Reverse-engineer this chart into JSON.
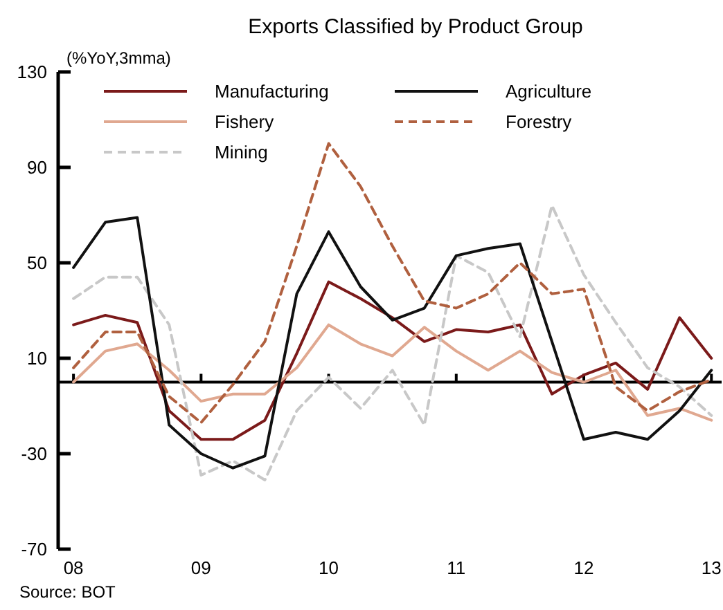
{
  "chart_data": {
    "type": "line",
    "title": "Exports Classified by Product Group",
    "ylabel": "(%YoY,3mma)",
    "annotations": [
      "Source: BOT"
    ],
    "x": [
      2008,
      2008.25,
      2008.5,
      2008.75,
      2009,
      2009.25,
      2009.5,
      2009.75,
      2010,
      2010.25,
      2010.5,
      2010.75,
      2011,
      2011.25,
      2011.5,
      2011.75,
      2012,
      2012.25,
      2012.5,
      2012.75,
      2013
    ],
    "xlim": [
      2007.88,
      2013.08
    ],
    "xticks": [
      {
        "value": 2008,
        "label": "08"
      },
      {
        "value": 2009,
        "label": "09"
      },
      {
        "value": 2010,
        "label": "10"
      },
      {
        "value": 2011,
        "label": "11"
      },
      {
        "value": 2012,
        "label": "12"
      },
      {
        "value": 2013,
        "label": "13"
      }
    ],
    "ylim": [
      -70,
      130
    ],
    "yticks": [
      -70,
      -30,
      10,
      50,
      90,
      130
    ],
    "ref_lines": [
      {
        "axis": "y",
        "value": 0,
        "color": "#000000"
      }
    ],
    "legend": "top",
    "grid": false,
    "series": [
      {
        "name": "Manufacturing",
        "color": "#7b1a1a",
        "line_style": "solid",
        "values": [
          24,
          28,
          25,
          -12,
          -24,
          -24,
          -16,
          12,
          42,
          35,
          27,
          17,
          22,
          21,
          24,
          -5,
          3,
          8,
          -3,
          27,
          10
        ]
      },
      {
        "name": "Fishery",
        "color": "#e0a890",
        "line_style": "solid",
        "values": [
          0,
          13,
          16,
          5,
          -8,
          -5,
          -5,
          6,
          24,
          16,
          11,
          23,
          13,
          5,
          13,
          4,
          0,
          5,
          -14,
          -11,
          -16
        ]
      },
      {
        "name": "Mining",
        "color": "#c8c8c8",
        "line_style": "dashed",
        "values": [
          35,
          44,
          44,
          24,
          -39,
          -33,
          -41,
          -12,
          2,
          -11,
          5,
          -18,
          53,
          46,
          19,
          74,
          45,
          25,
          6,
          -2,
          -14
        ]
      },
      {
        "name": "Agriculture",
        "color": "#111111",
        "line_style": "solid",
        "values": [
          48,
          67,
          69,
          -18,
          -30,
          -36,
          -31,
          37,
          63,
          40,
          26,
          31,
          53,
          56,
          58,
          17,
          -24,
          -21,
          -24,
          -12,
          5
        ]
      },
      {
        "name": "Forestry",
        "color": "#b0603f",
        "line_style": "dashed",
        "values": [
          6,
          21,
          21,
          -6,
          -17,
          -1,
          17,
          57,
          100,
          82,
          57,
          34,
          31,
          37,
          50,
          37,
          39,
          -2,
          -12,
          -4,
          1
        ]
      }
    ]
  }
}
